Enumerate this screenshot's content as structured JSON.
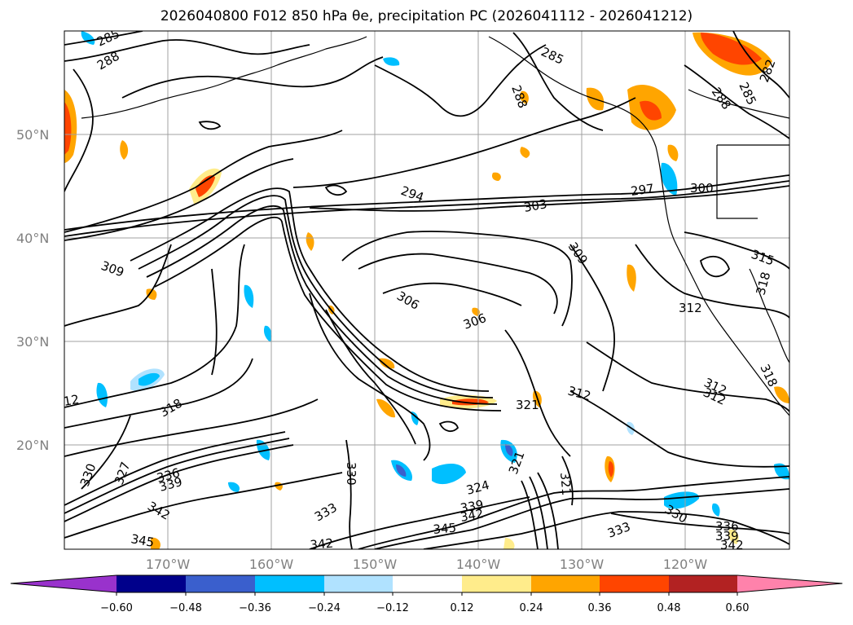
{
  "title": "2026040800 F012 850 hPa θe, precipitation PC (2026041112 - 2026041212)",
  "lat_labels": [
    {
      "id": "lat-50",
      "text": "50°N"
    },
    {
      "id": "lat-40",
      "text": "40°N"
    },
    {
      "id": "lat-30",
      "text": "30°N"
    },
    {
      "id": "lat-20",
      "text": "20°N"
    }
  ],
  "lon_labels": [
    {
      "id": "lon-170w",
      "text": "170°W"
    },
    {
      "id": "lon-160w",
      "text": "160°W"
    },
    {
      "id": "lon-150w",
      "text": "150°W"
    },
    {
      "id": "lon-140w",
      "text": "140°W"
    },
    {
      "id": "lon-130w",
      "text": "130°W"
    },
    {
      "id": "lon-120w",
      "text": "120°W"
    }
  ],
  "contour_labels": [
    "285",
    "288",
    "285",
    "288",
    "288",
    "285",
    "282",
    "294",
    "303",
    "297",
    "300",
    "309",
    "315",
    "318",
    "306",
    "306",
    "312",
    "309",
    "312",
    "321",
    "312",
    "318",
    "318",
    "312",
    "330",
    "327",
    "336",
    "339",
    "342",
    "330",
    "324",
    "321",
    "321",
    "333",
    "339",
    "342",
    "345",
    "345",
    "342",
    "330",
    "333",
    "336",
    "339",
    "342",
    "12"
  ],
  "colorbar": {
    "colors": [
      "#9932cc",
      "#00008b",
      "#3a5fcd",
      "#00bfff",
      "#b0e2ff",
      "#ffffff",
      "#ffec8b",
      "#ffa500",
      "#ff4500",
      "#b22222",
      "#ff82ab"
    ],
    "tick_labels": [
      "−0.60",
      "−0.48",
      "−0.36",
      "−0.24",
      "−0.12",
      "0.12",
      "0.24",
      "0.36",
      "0.48",
      "0.60"
    ]
  },
  "colors": {
    "contour": "#000000",
    "grid": "#a0a0a0",
    "coast": "#000000"
  }
}
